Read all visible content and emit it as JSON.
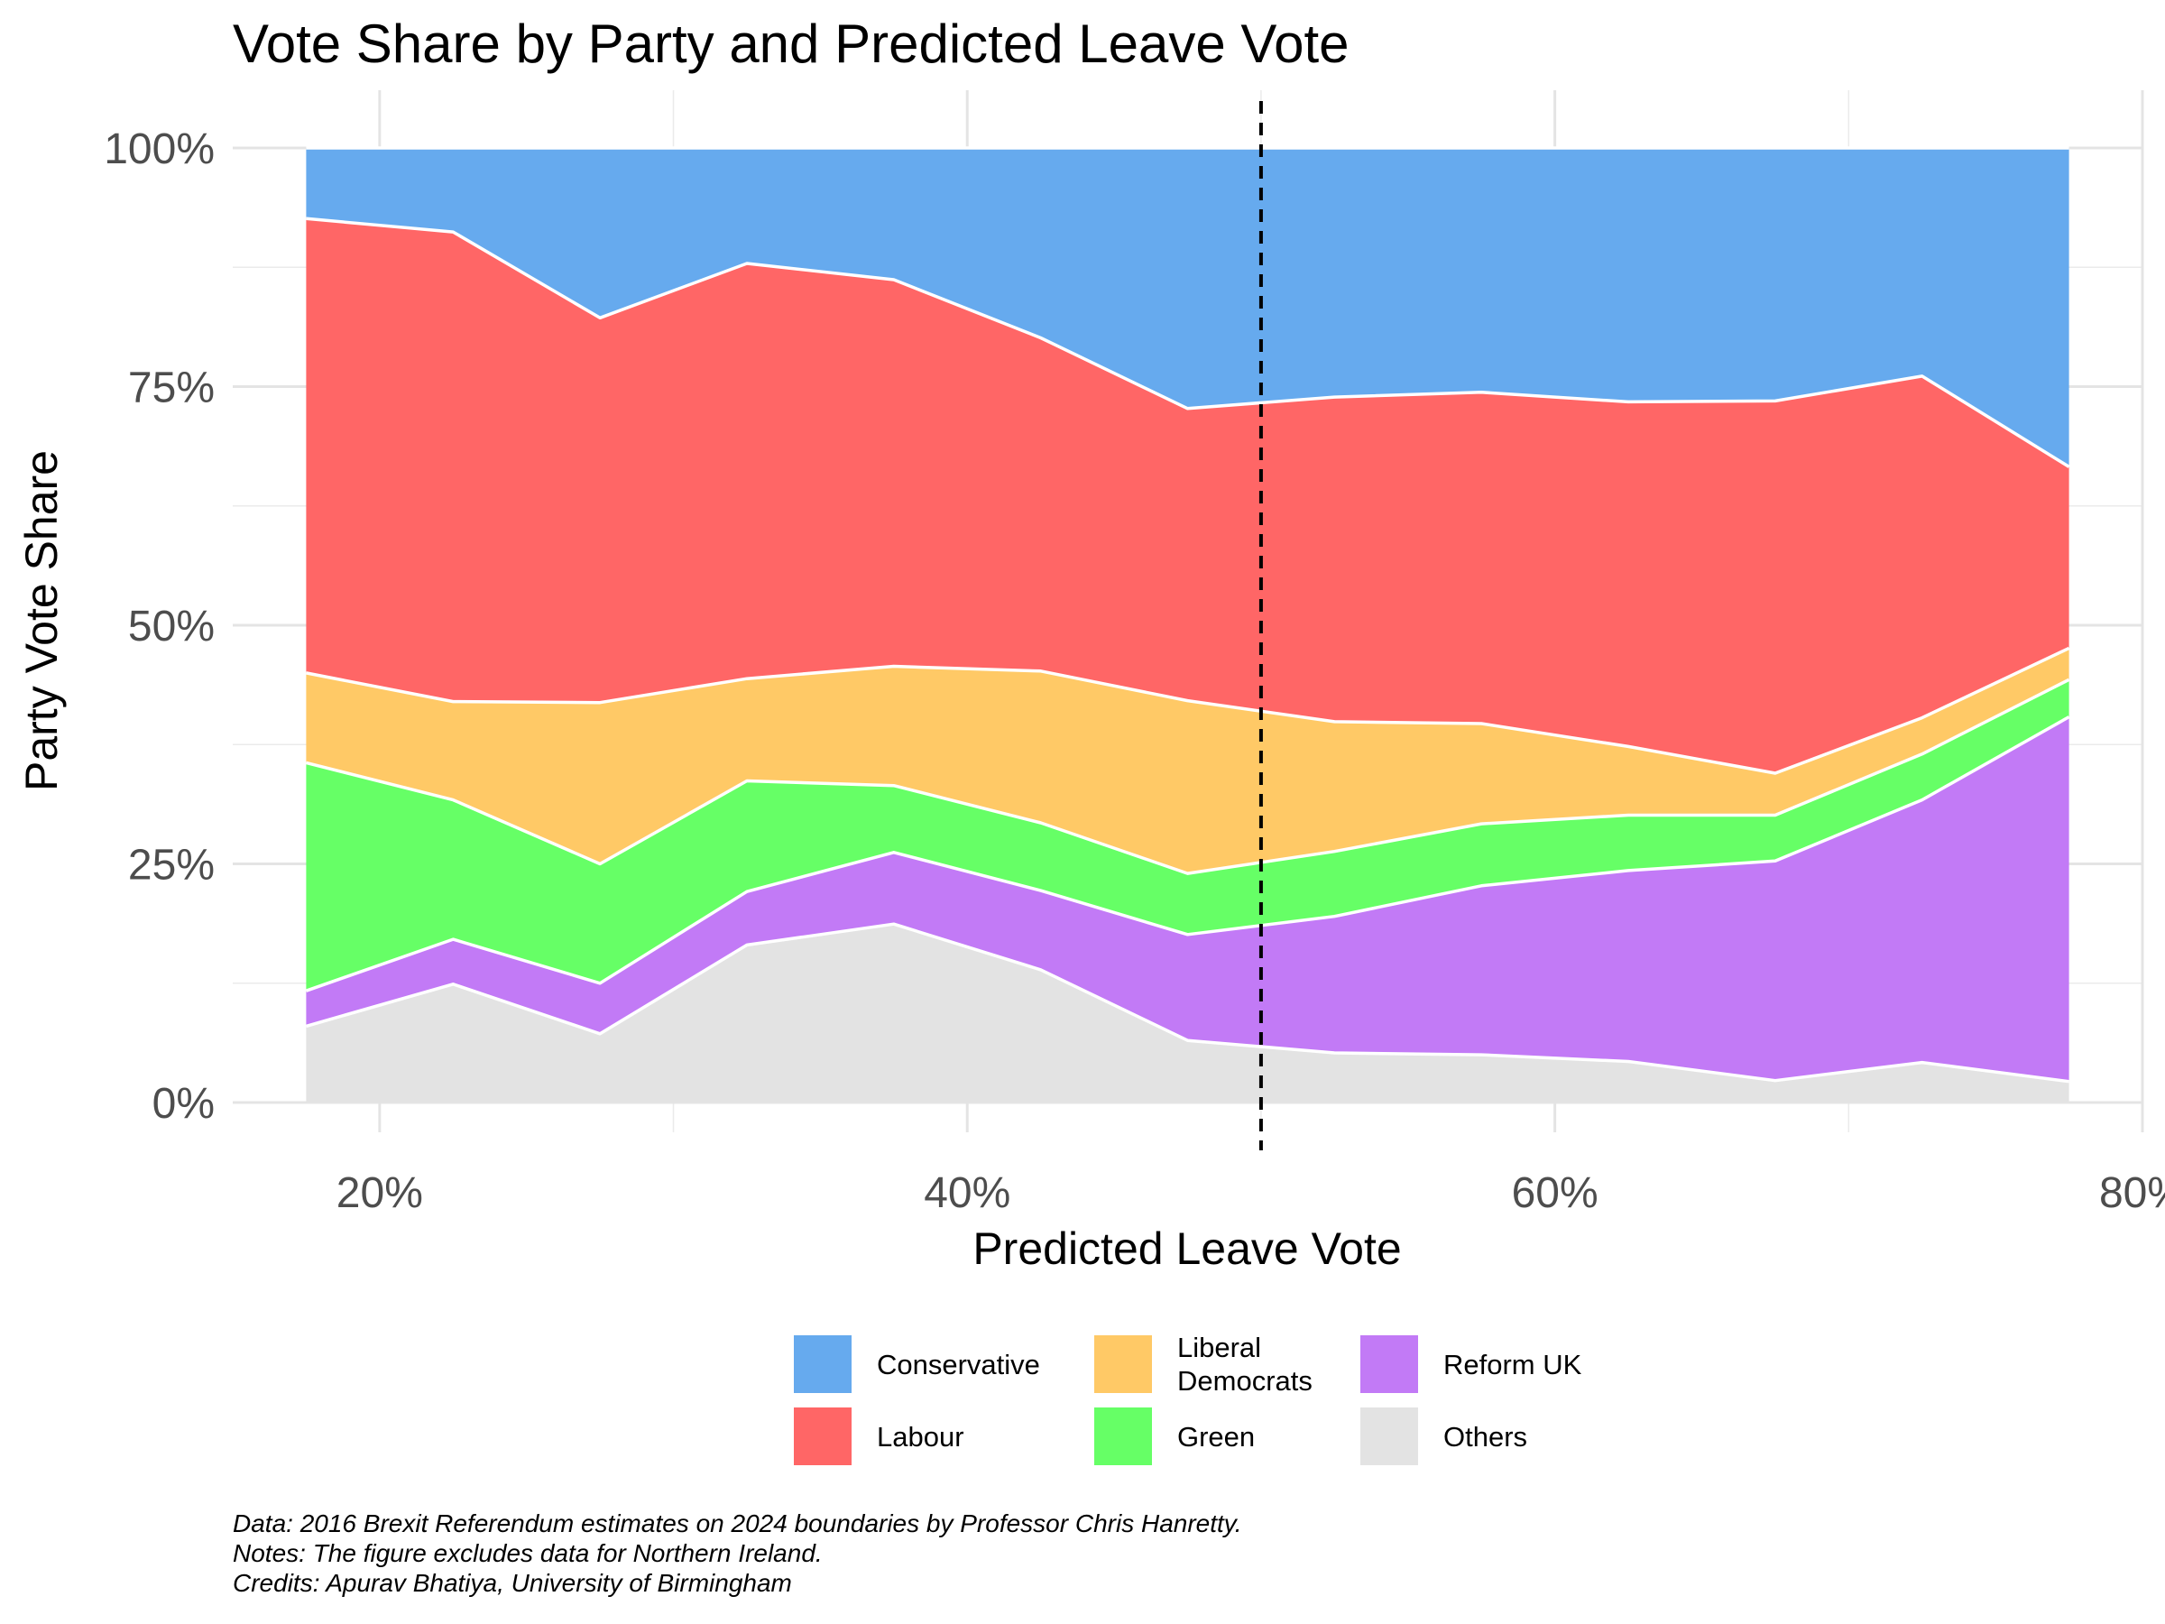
{
  "chart_data": {
    "type": "area",
    "title": "Vote Share by Party and Predicted Leave Vote",
    "xlabel": "Predicted Leave Vote",
    "ylabel": "Party Vote Share",
    "x": [
      17.5,
      22.5,
      27.5,
      32.5,
      37.5,
      42.5,
      47.5,
      52.5,
      57.5,
      62.5,
      67.5,
      72.5,
      77.5
    ],
    "xlim": [
      15,
      80
    ],
    "ylim": [
      0,
      100
    ],
    "x_ticks": [
      20,
      40,
      60,
      80
    ],
    "x_tick_labels": [
      "20%",
      "40%",
      "60%",
      "80%"
    ],
    "y_ticks": [
      0,
      25,
      50,
      75,
      100
    ],
    "y_tick_labels": [
      "0%",
      "25%",
      "50%",
      "75%",
      "100%"
    ],
    "reference_line": {
      "x": 50,
      "style": "dashed",
      "color": "#000000"
    },
    "grid": true,
    "legend_position": "bottom",
    "series": [
      {
        "name": "Others",
        "color": "#e3e3e3",
        "values": [
          8.0,
          12.4,
          7.2,
          16.5,
          18.7,
          13.9,
          6.5,
          5.2,
          5.0,
          4.3,
          2.3,
          4.2,
          2.2
        ]
      },
      {
        "name": "Reform UK",
        "color": "#c27af6",
        "values": [
          3.7,
          4.7,
          5.3,
          5.6,
          7.5,
          8.3,
          11.1,
          14.3,
          17.7,
          20.0,
          23.0,
          27.5,
          38.2
        ]
      },
      {
        "name": "Green",
        "color": "#66ff66",
        "values": [
          23.9,
          14.6,
          12.5,
          11.6,
          7.0,
          7.1,
          6.4,
          6.8,
          6.5,
          5.8,
          4.8,
          4.8,
          3.9
        ]
      },
      {
        "name": "Liberal Democrats",
        "color": "#ffc966",
        "values": [
          9.4,
          10.3,
          16.9,
          10.7,
          12.5,
          15.9,
          18.1,
          13.6,
          10.5,
          7.2,
          4.4,
          3.8,
          3.3
        ]
      },
      {
        "name": "Labour",
        "color": "#ff6666",
        "values": [
          47.6,
          49.2,
          40.3,
          43.5,
          40.5,
          34.9,
          30.6,
          34.0,
          34.7,
          36.1,
          39.0,
          35.8,
          19.0
        ]
      },
      {
        "name": "Conservative",
        "color": "#66aaee",
        "values": [
          7.4,
          8.8,
          17.8,
          12.1,
          13.8,
          19.9,
          27.3,
          26.1,
          25.6,
          26.6,
          26.5,
          23.9,
          33.4
        ]
      }
    ],
    "legend_order": [
      "Conservative",
      "Labour",
      "Liberal Democrats",
      "Green",
      "Reform UK",
      "Others"
    ]
  },
  "legend": [
    {
      "label": "Conservative",
      "color": "#66aaee"
    },
    {
      "label": "Labour",
      "color": "#ff6666"
    },
    {
      "label": "Liberal\nDemocrats",
      "color": "#ffc966"
    },
    {
      "label": "Green",
      "color": "#66ff66"
    },
    {
      "label": "Reform UK",
      "color": "#c27af6"
    },
    {
      "label": "Others",
      "color": "#e3e3e3"
    }
  ],
  "caption": {
    "line1": "Data: 2016 Brexit Referendum estimates on 2024 boundaries by Professor Chris Hanretty.",
    "line2": "Notes: The figure excludes data for Northern Ireland.",
    "line3": "Credits: Apurav Bhatiya, University of Birmingham"
  }
}
